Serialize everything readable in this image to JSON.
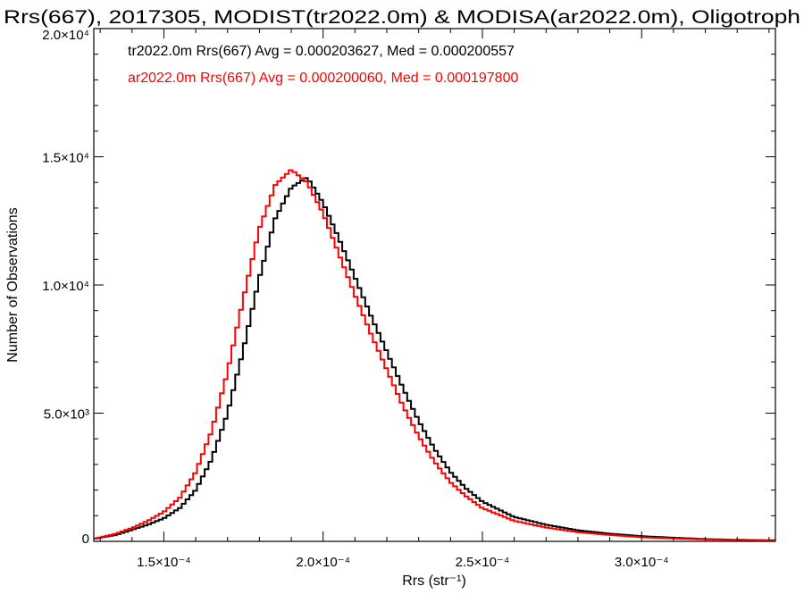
{
  "chart_data": {
    "type": "line",
    "title": "Rrs(667), 2017305, MODIST(tr2022.0m) & MODISA(ar2022.0m), Oligotroph",
    "xlabel": "Rrs (str⁻¹)",
    "ylabel": "Number of Observations",
    "xlim": [
      0.000128,
      0.000342
    ],
    "ylim": [
      0,
      20000
    ],
    "x_ticks": [
      {
        "value": 0.00015,
        "label": "1.5×10⁻⁴"
      },
      {
        "value": 0.0002,
        "label": "2.0×10⁻⁴"
      },
      {
        "value": 0.00025,
        "label": "2.5×10⁻⁴"
      },
      {
        "value": 0.0003,
        "label": "3.0×10⁻⁴"
      }
    ],
    "y_ticks": [
      {
        "value": 0,
        "label": "0"
      },
      {
        "value": 5000,
        "label": "5.0×10³"
      },
      {
        "value": 10000,
        "label": "1.0×10⁴"
      },
      {
        "value": 15000,
        "label": "1.5×10⁴"
      },
      {
        "value": 20000,
        "label": "2.0×10⁴"
      }
    ],
    "grid": false,
    "series": [
      {
        "name": "tr2022.0m",
        "color": "#000000",
        "annotation": "tr2022.0m Rrs(667) Avg = 0.000203627, Med = 0.000200557",
        "x": [
          0.000128,
          0.000135,
          0.00014,
          0.000145,
          0.00015,
          0.000155,
          0.00016,
          0.000165,
          0.00017,
          0.000175,
          0.00018,
          0.000185,
          0.00019,
          0.000195,
          0.0002,
          0.000205,
          0.00021,
          0.000215,
          0.00022,
          0.000225,
          0.00023,
          0.000235,
          0.00024,
          0.000245,
          0.00025,
          0.00026,
          0.00027,
          0.00028,
          0.00029,
          0.0003,
          0.00031,
          0.00032,
          0.00033,
          0.000342
        ],
        "y": [
          100,
          250,
          450,
          650,
          900,
          1300,
          2000,
          3200,
          5000,
          7500,
          10300,
          12600,
          13800,
          14200,
          13200,
          11800,
          10300,
          8800,
          7400,
          6000,
          4700,
          3600,
          2700,
          2050,
          1550,
          950,
          650,
          430,
          300,
          200,
          140,
          90,
          60,
          40
        ]
      },
      {
        "name": "ar2022.0m",
        "color": "#ff0000",
        "annotation": "ar2022.0m Rrs(667) Avg = 0.000200060, Med = 0.000197800",
        "x": [
          0.000128,
          0.000135,
          0.00014,
          0.000145,
          0.00015,
          0.000155,
          0.00016,
          0.000165,
          0.00017,
          0.000175,
          0.00018,
          0.000185,
          0.00019,
          0.000195,
          0.0002,
          0.000205,
          0.00021,
          0.000215,
          0.00022,
          0.000225,
          0.00023,
          0.000235,
          0.00024,
          0.000245,
          0.00025,
          0.00026,
          0.00027,
          0.00028,
          0.00029,
          0.0003,
          0.00031,
          0.00032,
          0.00033,
          0.000342
        ],
        "y": [
          100,
          300,
          520,
          800,
          1150,
          1700,
          2700,
          4300,
          6600,
          9500,
          12200,
          13900,
          14500,
          14000,
          12800,
          11200,
          9600,
          8100,
          6700,
          5300,
          4100,
          3100,
          2300,
          1750,
          1300,
          800,
          540,
          360,
          250,
          160,
          110,
          75,
          50,
          30
        ]
      }
    ]
  }
}
